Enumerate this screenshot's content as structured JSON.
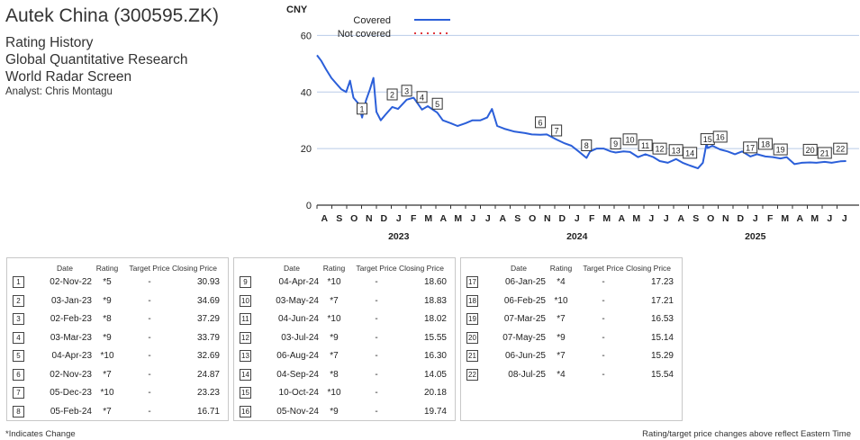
{
  "header": {
    "title": "Autek China (300595.ZK)",
    "subtitle1": "Rating History",
    "subtitle2": "Global Quantitative Research",
    "subtitle3": "World Radar Screen",
    "analyst": "Analyst: Chris Montagu"
  },
  "chart_data": {
    "type": "line",
    "ylabel": "CNY",
    "ylim": [
      0,
      70
    ],
    "y_ticks": [
      0,
      20,
      40,
      60
    ],
    "grid": true,
    "legend": [
      {
        "name": "Covered",
        "color": "#2b5fd9",
        "style": "solid"
      },
      {
        "name": "Not covered",
        "color": "#e0393e",
        "style": "dotted"
      }
    ],
    "legend_position": "top-left",
    "x_month_labels": [
      "A",
      "S",
      "O",
      "N",
      "D",
      "J",
      "F",
      "M",
      "A",
      "M",
      "J",
      "J",
      "A",
      "S",
      "O",
      "N",
      "D",
      "J",
      "F",
      "M",
      "A",
      "M",
      "J",
      "J",
      "A",
      "S",
      "O",
      "N",
      "D",
      "J",
      "F",
      "M",
      "A",
      "M",
      "J",
      "J"
    ],
    "x_year_labels": [
      {
        "label": "2023",
        "month_index": 5
      },
      {
        "label": "2024",
        "month_index": 17
      },
      {
        "label": "2025",
        "month_index": 29
      }
    ],
    "x_start": "2022-08-01",
    "series": [
      {
        "name": "Covered",
        "color": "#2b5fd9",
        "points": [
          [
            "2022-08-01",
            53
          ],
          [
            "2022-08-10",
            51
          ],
          [
            "2022-08-20",
            48
          ],
          [
            "2022-08-31",
            45
          ],
          [
            "2022-09-10",
            43
          ],
          [
            "2022-09-20",
            41
          ],
          [
            "2022-09-30",
            40
          ],
          [
            "2022-10-08",
            44
          ],
          [
            "2022-10-15",
            38
          ],
          [
            "2022-10-25",
            36
          ],
          [
            "2022-11-02",
            31
          ],
          [
            "2022-11-10",
            37
          ],
          [
            "2022-11-18",
            41
          ],
          [
            "2022-11-25",
            45
          ],
          [
            "2022-12-01",
            33
          ],
          [
            "2022-12-10",
            30
          ],
          [
            "2022-12-20",
            32
          ],
          [
            "2023-01-03",
            34.7
          ],
          [
            "2023-01-15",
            34
          ],
          [
            "2023-02-02",
            37.3
          ],
          [
            "2023-02-15",
            38
          ],
          [
            "2023-03-03",
            33.8
          ],
          [
            "2023-03-15",
            35
          ],
          [
            "2023-04-04",
            32.7
          ],
          [
            "2023-04-15",
            30
          ],
          [
            "2023-05-01",
            29
          ],
          [
            "2023-05-15",
            28
          ],
          [
            "2023-06-01",
            29
          ],
          [
            "2023-06-15",
            30
          ],
          [
            "2023-07-01",
            30
          ],
          [
            "2023-07-15",
            31
          ],
          [
            "2023-07-25",
            34
          ],
          [
            "2023-08-05",
            28
          ],
          [
            "2023-08-20",
            27
          ],
          [
            "2023-09-10",
            26
          ],
          [
            "2023-10-01",
            25.5
          ],
          [
            "2023-10-15",
            25
          ],
          [
            "2023-11-02",
            24.9
          ],
          [
            "2023-11-15",
            25
          ],
          [
            "2023-12-05",
            23.2
          ],
          [
            "2023-12-20",
            22
          ],
          [
            "2024-01-05",
            21
          ],
          [
            "2024-01-20",
            19
          ],
          [
            "2024-02-05",
            16.7
          ],
          [
            "2024-02-12",
            19
          ],
          [
            "2024-02-25",
            20
          ],
          [
            "2024-03-10",
            20
          ],
          [
            "2024-03-25",
            19
          ],
          [
            "2024-04-04",
            18.6
          ],
          [
            "2024-04-20",
            19
          ],
          [
            "2024-05-03",
            18.8
          ],
          [
            "2024-05-20",
            17
          ],
          [
            "2024-06-04",
            18
          ],
          [
            "2024-06-20",
            17
          ],
          [
            "2024-07-03",
            15.6
          ],
          [
            "2024-07-20",
            15
          ],
          [
            "2024-08-06",
            16.3
          ],
          [
            "2024-08-20",
            15
          ],
          [
            "2024-09-04",
            14
          ],
          [
            "2024-09-20",
            13
          ],
          [
            "2024-09-30",
            15
          ],
          [
            "2024-10-08",
            22
          ],
          [
            "2024-10-10",
            20.2
          ],
          [
            "2024-10-20",
            21
          ],
          [
            "2024-11-05",
            19.7
          ],
          [
            "2024-11-20",
            19
          ],
          [
            "2024-12-05",
            18
          ],
          [
            "2024-12-20",
            19
          ],
          [
            "2025-01-06",
            17.2
          ],
          [
            "2025-01-20",
            18
          ],
          [
            "2025-02-06",
            17.2
          ],
          [
            "2025-02-20",
            17
          ],
          [
            "2025-03-07",
            16.5
          ],
          [
            "2025-03-20",
            17
          ],
          [
            "2025-04-05",
            14.5
          ],
          [
            "2025-04-20",
            15
          ],
          [
            "2025-05-07",
            15.1
          ],
          [
            "2025-05-20",
            15
          ],
          [
            "2025-06-06",
            15.3
          ],
          [
            "2025-06-20",
            15
          ],
          [
            "2025-07-08",
            15.5
          ],
          [
            "2025-07-20",
            15.6
          ]
        ]
      }
    ],
    "markers": [
      {
        "n": "1",
        "date": "2022-11-02",
        "value": 30.93
      },
      {
        "n": "2",
        "date": "2023-01-03",
        "value": 34.69
      },
      {
        "n": "3",
        "date": "2023-02-02",
        "value": 37.29
      },
      {
        "n": "4",
        "date": "2023-03-03",
        "value": 33.79
      },
      {
        "n": "5",
        "date": "2023-04-04",
        "value": 32.69
      },
      {
        "n": "6",
        "date": "2023-11-02",
        "value": 24.87
      },
      {
        "n": "7",
        "date": "2023-12-05",
        "value": 23.23
      },
      {
        "n": "8",
        "date": "2024-02-05",
        "value": 16.71
      },
      {
        "n": "9",
        "date": "2024-04-04",
        "value": 18.6
      },
      {
        "n": "10",
        "date": "2024-05-03",
        "value": 18.83
      },
      {
        "n": "11",
        "date": "2024-06-04",
        "value": 18.02
      },
      {
        "n": "12",
        "date": "2024-07-03",
        "value": 15.55
      },
      {
        "n": "13",
        "date": "2024-08-06",
        "value": 16.3
      },
      {
        "n": "14",
        "date": "2024-09-04",
        "value": 14.05
      },
      {
        "n": "15",
        "date": "2024-10-10",
        "value": 20.18
      },
      {
        "n": "16",
        "date": "2024-11-05",
        "value": 19.74
      },
      {
        "n": "17",
        "date": "2025-01-06",
        "value": 17.23
      },
      {
        "n": "18",
        "date": "2025-02-06",
        "value": 17.21
      },
      {
        "n": "19",
        "date": "2025-03-07",
        "value": 16.53
      },
      {
        "n": "20",
        "date": "2025-05-07",
        "value": 15.14
      },
      {
        "n": "21",
        "date": "2025-06-06",
        "value": 15.29
      },
      {
        "n": "22",
        "date": "2025-07-08",
        "value": 15.54
      }
    ]
  },
  "table": {
    "headers": {
      "date": "Date",
      "rating": "Rating",
      "target": "Target Price",
      "closing": "Closing Price"
    },
    "rows": [
      {
        "n": "1",
        "date": "02-Nov-22",
        "rating": "*5",
        "target": "-",
        "closing": "30.93"
      },
      {
        "n": "2",
        "date": "03-Jan-23",
        "rating": "*9",
        "target": "-",
        "closing": "34.69"
      },
      {
        "n": "3",
        "date": "02-Feb-23",
        "rating": "*8",
        "target": "-",
        "closing": "37.29"
      },
      {
        "n": "4",
        "date": "03-Mar-23",
        "rating": "*9",
        "target": "-",
        "closing": "33.79"
      },
      {
        "n": "5",
        "date": "04-Apr-23",
        "rating": "*10",
        "target": "-",
        "closing": "32.69"
      },
      {
        "n": "6",
        "date": "02-Nov-23",
        "rating": "*7",
        "target": "-",
        "closing": "24.87"
      },
      {
        "n": "7",
        "date": "05-Dec-23",
        "rating": "*10",
        "target": "-",
        "closing": "23.23"
      },
      {
        "n": "8",
        "date": "05-Feb-24",
        "rating": "*7",
        "target": "-",
        "closing": "16.71"
      },
      {
        "n": "9",
        "date": "04-Apr-24",
        "rating": "*10",
        "target": "-",
        "closing": "18.60"
      },
      {
        "n": "10",
        "date": "03-May-24",
        "rating": "*7",
        "target": "-",
        "closing": "18.83"
      },
      {
        "n": "11",
        "date": "04-Jun-24",
        "rating": "*10",
        "target": "-",
        "closing": "18.02"
      },
      {
        "n": "12",
        "date": "03-Jul-24",
        "rating": "*9",
        "target": "-",
        "closing": "15.55"
      },
      {
        "n": "13",
        "date": "06-Aug-24",
        "rating": "*7",
        "target": "-",
        "closing": "16.30"
      },
      {
        "n": "14",
        "date": "04-Sep-24",
        "rating": "*8",
        "target": "-",
        "closing": "14.05"
      },
      {
        "n": "15",
        "date": "10-Oct-24",
        "rating": "*10",
        "target": "-",
        "closing": "20.18"
      },
      {
        "n": "16",
        "date": "05-Nov-24",
        "rating": "*9",
        "target": "-",
        "closing": "19.74"
      },
      {
        "n": "17",
        "date": "06-Jan-25",
        "rating": "*4",
        "target": "-",
        "closing": "17.23"
      },
      {
        "n": "18",
        "date": "06-Feb-25",
        "rating": "*10",
        "target": "-",
        "closing": "17.21"
      },
      {
        "n": "19",
        "date": "07-Mar-25",
        "rating": "*7",
        "target": "-",
        "closing": "16.53"
      },
      {
        "n": "20",
        "date": "07-May-25",
        "rating": "*9",
        "target": "-",
        "closing": "15.14"
      },
      {
        "n": "21",
        "date": "06-Jun-25",
        "rating": "*7",
        "target": "-",
        "closing": "15.29"
      },
      {
        "n": "22",
        "date": "08-Jul-25",
        "rating": "*4",
        "target": "-",
        "closing": "15.54"
      }
    ]
  },
  "footer": {
    "note": "*Indicates Change",
    "right_note": "Rating/target price changes above reflect Eastern Time"
  }
}
